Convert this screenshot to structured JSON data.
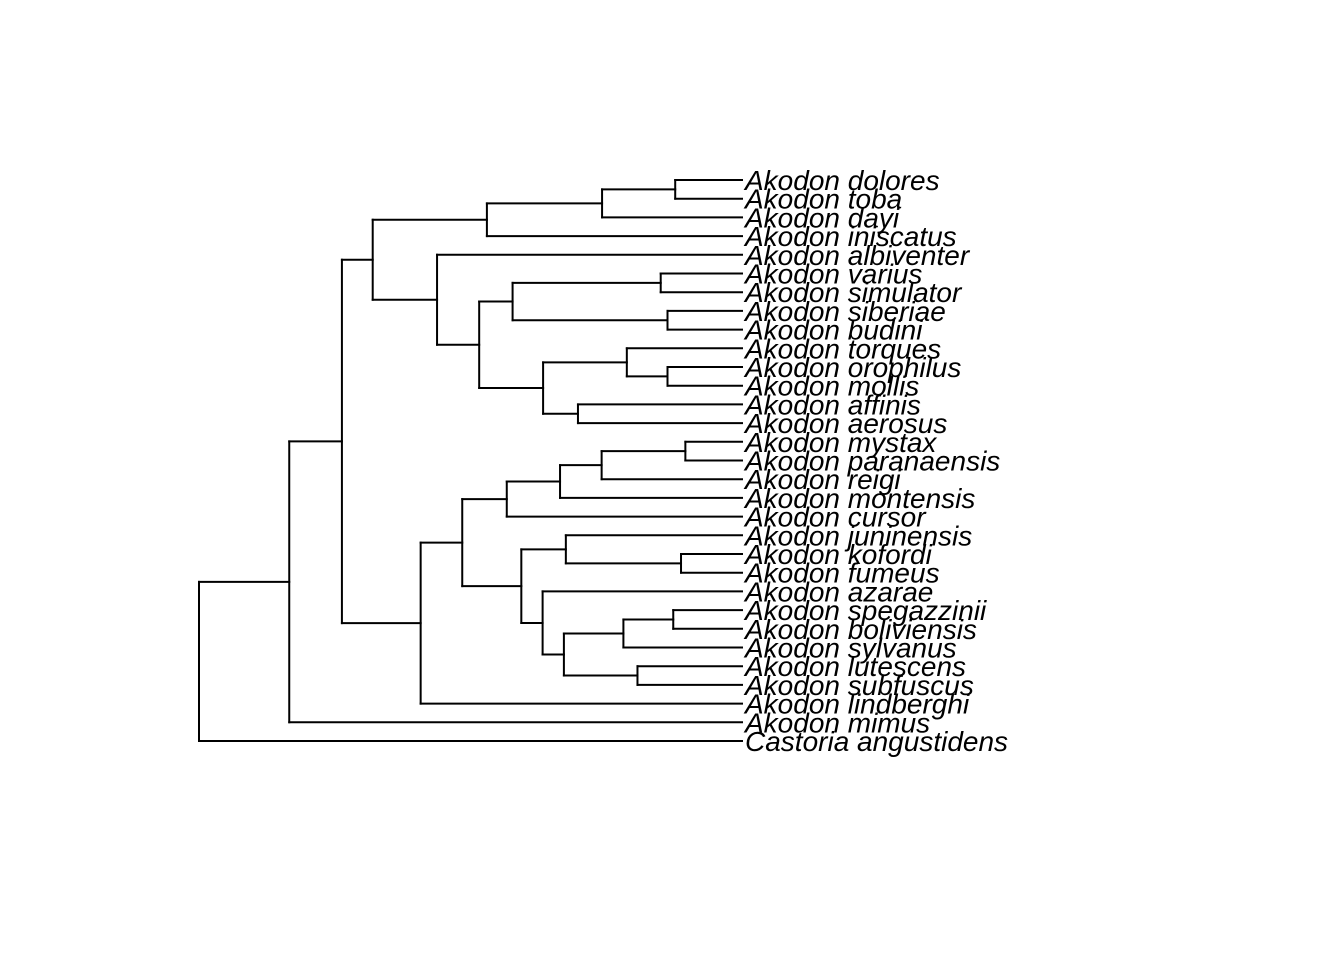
{
  "tips": [
    "Akodon dolores",
    "Akodon toba",
    "Akodon dayi",
    "Akodon iniscatus",
    "Akodon albiventer",
    "Akodon varius",
    "Akodon simulator",
    "Akodon siberiae",
    "Akodon budini",
    "Akodon torques",
    "Akodon orophilus",
    "Akodon mollis",
    "Akodon affinis",
    "Akodon aerosus",
    "Akodon mystax",
    "Akodon paranaensis",
    "Akodon reigi",
    "Akodon montensis",
    "Akodon cursor",
    "Akodon juninensis",
    "Akodon kofordi",
    "Akodon fumeus",
    "Akodon azarae",
    "Akodon spegazzinii",
    "Akodon boliviensis",
    "Akodon sylvanus",
    "Akodon lutescens",
    "Akodon subfuscus",
    "Akodon lindberghi",
    "Akodon mimus",
    "Castoria angustidens"
  ],
  "tree": {
    "d": 0.0,
    "c": [
      {
        "d": 0.1662,
        "c": [
          {
            "d": 0.2632,
            "c": [
              {
                "d": 0.3199,
                "c": [
                  {
                    "d": 0.5302,
                    "c": [
                      {
                        "d": 0.7423,
                        "c": [
                          {
                            "d": 0.877,
                            "c": [
                              {
                                "t": 0
                              },
                              {
                                "t": 1
                              }
                            ]
                          },
                          {
                            "t": 2
                          }
                        ]
                      },
                      {
                        "t": 3
                      }
                    ]
                  },
                  {
                    "d": 0.4384,
                    "c": [
                      {
                        "t": 4
                      },
                      {
                        "d": 0.516,
                        "c": [
                          {
                            "d": 0.5775,
                            "c": [
                              {
                                "d": 0.8503,
                                "c": [
                                  {
                                    "t": 5
                                  },
                                  {
                                    "t": 6
                                  }
                                ]
                              },
                              {
                                "d": 0.8628,
                                "c": [
                                  {
                                    "t": 7
                                  },
                                  {
                                    "t": 8
                                  }
                                ]
                              }
                            ]
                          },
                          {
                            "d": 0.6337,
                            "c": [
                              {
                                "d": 0.7879,
                                "c": [
                                  {
                                    "t": 9
                                  },
                                  {
                                    "d": 0.8628,
                                    "c": [
                                      {
                                        "t": 10
                                      },
                                      {
                                        "t": 11
                                      }
                                    ]
                                  }
                                ]
                              },
                              {
                                "d": 0.6979,
                                "c": [
                                  {
                                    "t": 12
                                  },
                                  {
                                    "t": 13
                                  }
                                ]
                              }
                            ]
                          }
                        ]
                      }
                    ]
                  }
                ]
              },
              {
                "d": 0.4082,
                "c": [
                  {
                    "d": 0.4848,
                    "c": [
                      {
                        "d": 0.5668,
                        "c": [
                          {
                            "d": 0.6649,
                            "c": [
                              {
                                "d": 0.7415,
                                "c": [
                                  {
                                    "d": 0.8957,
                                    "c": [
                                      {
                                        "t": 14
                                      },
                                      {
                                        "t": 15
                                      }
                                    ]
                                  },
                                  {
                                    "t": 16
                                  }
                                ]
                              },
                              {
                                "t": 17
                              }
                            ]
                          },
                          {
                            "t": 18
                          }
                        ]
                      },
                      {
                        "d": 0.5936,
                        "c": [
                          {
                            "d": 0.6756,
                            "c": [
                              {
                                "t": 19
                              },
                              {
                                "d": 0.8877,
                                "c": [
                                  {
                                    "t": 20
                                  },
                                  {
                                    "t": 21
                                  }
                                ]
                              }
                            ]
                          },
                          {
                            "d": 0.6328,
                            "c": [
                              {
                                "t": 22
                              },
                              {
                                "d": 0.672,
                                "c": [
                                  {
                                    "d": 0.7816,
                                    "c": [
                                      {
                                        "d": 0.8734,
                                        "c": [
                                          {
                                            "t": 23
                                          },
                                          {
                                            "t": 24
                                          }
                                        ]
                                      },
                                      {
                                        "t": 25
                                      }
                                    ]
                                  },
                                  {
                                    "d": 0.8075,
                                    "c": [
                                      {
                                        "t": 26
                                      },
                                      {
                                        "t": 27
                                      }
                                    ]
                                  }
                                ]
                              }
                            ]
                          }
                        ]
                      }
                    ]
                  },
                  {
                    "t": 28
                  }
                ]
              }
            ]
          },
          {
            "t": 29
          }
        ]
      },
      {
        "t": 30
      }
    ]
  }
}
